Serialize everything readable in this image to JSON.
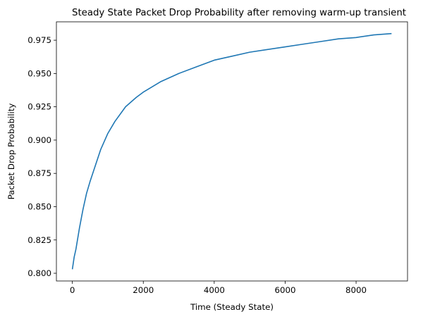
{
  "chart_data": {
    "type": "line",
    "title": "Steady State Packet Drop Probability after removing warm-up transient",
    "xlabel": "Time (Steady State)",
    "ylabel": "Packet Drop Probability",
    "xlim": [
      -450,
      9450
    ],
    "ylim": [
      0.7942,
      0.9888
    ],
    "xticks": [
      0,
      2000,
      4000,
      6000,
      8000
    ],
    "xtick_labels": [
      "0",
      "2000",
      "4000",
      "6000",
      "8000"
    ],
    "yticks": [
      0.8,
      0.825,
      0.85,
      0.875,
      0.9,
      0.925,
      0.95,
      0.975
    ],
    "ytick_labels": [
      "0.800",
      "0.825",
      "0.850",
      "0.875",
      "0.900",
      "0.925",
      "0.950",
      "0.975"
    ],
    "grid": false,
    "line_color": "#1f77b4",
    "series": [
      {
        "x": [
          0,
          50,
          100,
          200,
          300,
          400,
          500,
          600,
          800,
          1000,
          1200,
          1500,
          1800,
          2000,
          2500,
          3000,
          3500,
          4000,
          4500,
          5000,
          5500,
          6000,
          6500,
          7000,
          7500,
          8000,
          8500,
          9000
        ],
        "y": [
          0.803,
          0.812,
          0.818,
          0.834,
          0.848,
          0.86,
          0.869,
          0.877,
          0.893,
          0.905,
          0.914,
          0.925,
          0.932,
          0.936,
          0.944,
          0.95,
          0.955,
          0.96,
          0.963,
          0.966,
          0.968,
          0.97,
          0.972,
          0.974,
          0.976,
          0.977,
          0.979,
          0.98
        ]
      }
    ]
  }
}
